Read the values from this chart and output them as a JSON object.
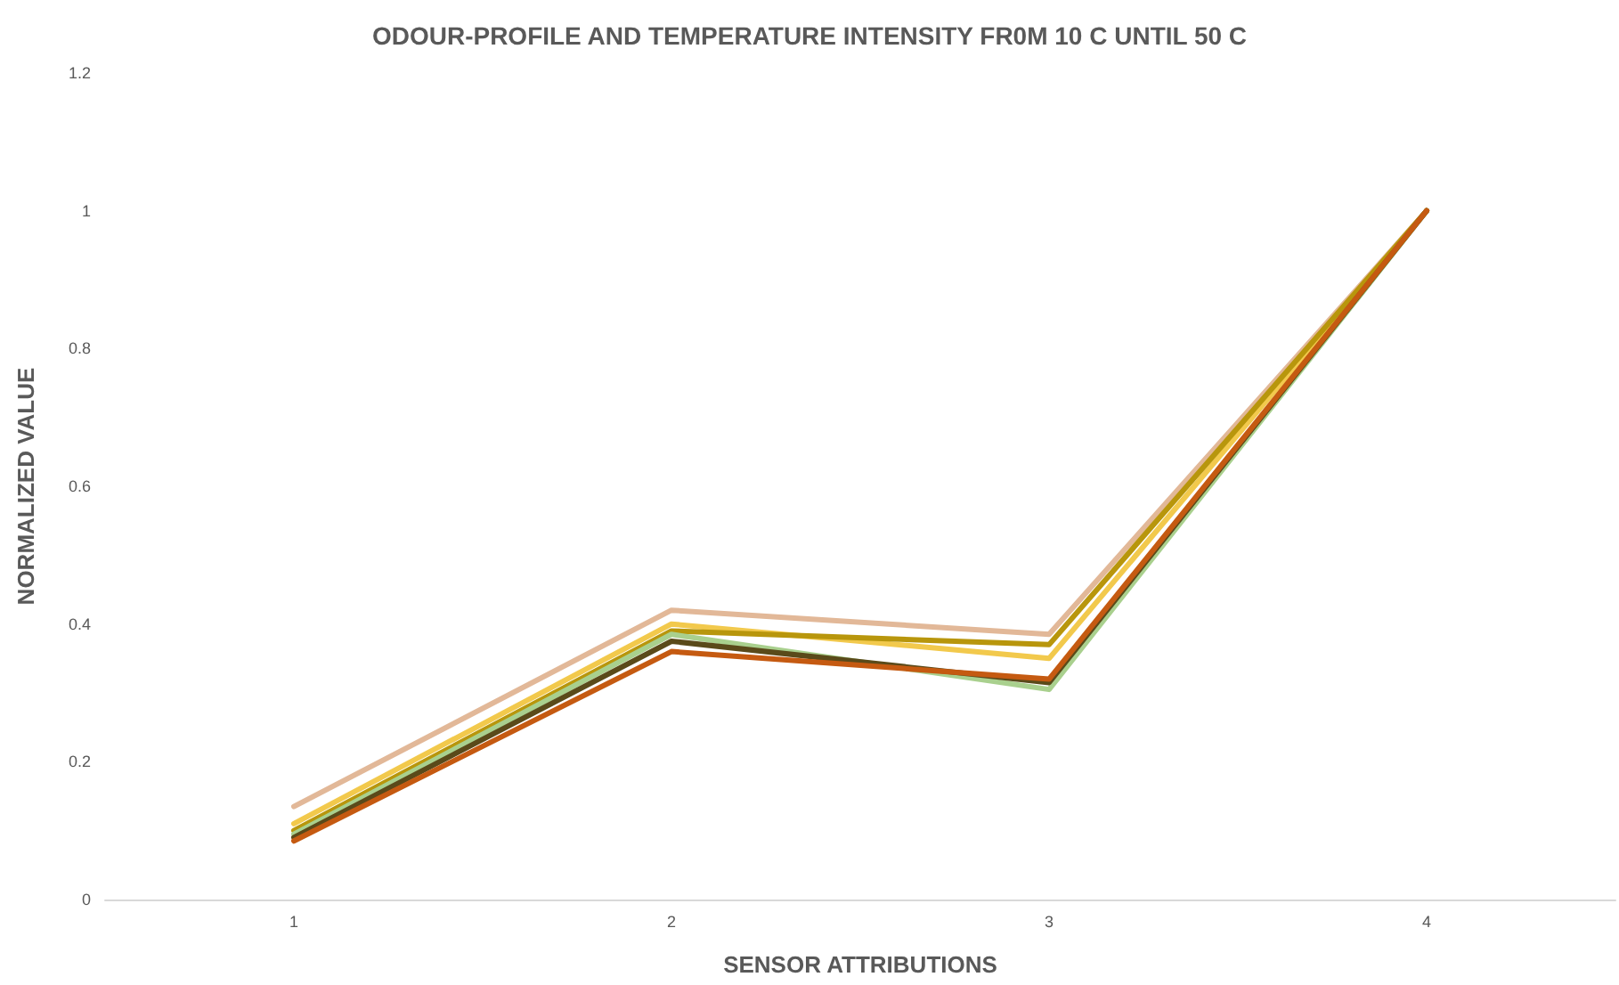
{
  "chart_data": {
    "type": "line",
    "title": "ODOUR-PROFILE AND TEMPERATURE INTENSITY FR0M 10 C UNTIL 50 C",
    "xlabel": "SENSOR ATTRIBUTIONS",
    "ylabel": "NORMALIZED VALUE",
    "categories": [
      "1",
      "2",
      "3",
      "4"
    ],
    "series": [
      {
        "color": "#e2b898",
        "values": [
          0.135,
          0.42,
          0.385,
          1
        ]
      },
      {
        "color": "#f2c94c",
        "values": [
          0.11,
          0.4,
          0.35,
          1
        ]
      },
      {
        "color": "#b8960c",
        "values": [
          0.1,
          0.39,
          0.37,
          1
        ]
      },
      {
        "color": "#a9d08e",
        "values": [
          0.095,
          0.385,
          0.305,
          1
        ]
      },
      {
        "color": "#5a4a1a",
        "values": [
          0.09,
          0.375,
          0.315,
          1
        ]
      },
      {
        "color": "#c55a11",
        "values": [
          0.085,
          0.36,
          0.32,
          1
        ]
      }
    ],
    "ylim": [
      0,
      1.2
    ],
    "yticks": [
      0,
      0.2,
      0.4,
      0.6,
      0.8,
      1,
      1.2
    ],
    "grid": false,
    "marker": "none",
    "line_style": "solid"
  }
}
